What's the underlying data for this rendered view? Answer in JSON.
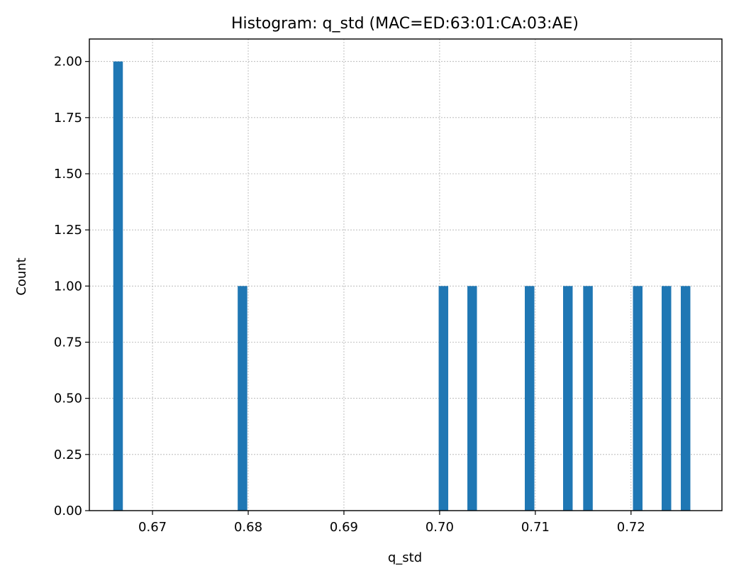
{
  "chart_data": {
    "type": "bar",
    "title": "Histogram: q_std (MAC=ED:63:01:CA:03:AE)",
    "xlabel": "q_std",
    "ylabel": "Count",
    "xlim": [
      0.6634,
      0.7295
    ],
    "ylim": [
      0,
      2.1
    ],
    "bin_width": 0.001,
    "grid": true,
    "color": "#1f77b4",
    "xticks": [
      "0.67",
      "0.68",
      "0.69",
      "0.70",
      "0.71",
      "0.72"
    ],
    "yticks": [
      "0.00",
      "0.25",
      "0.50",
      "0.75",
      "1.00",
      "1.25",
      "1.50",
      "1.75",
      "2.00"
    ],
    "bars": [
      {
        "x": 0.6664,
        "count": 2
      },
      {
        "x": 0.6794,
        "count": 1
      },
      {
        "x": 0.7004,
        "count": 1
      },
      {
        "x": 0.7034,
        "count": 1
      },
      {
        "x": 0.7094,
        "count": 1
      },
      {
        "x": 0.7134,
        "count": 1
      },
      {
        "x": 0.7155,
        "count": 1
      },
      {
        "x": 0.7207,
        "count": 1
      },
      {
        "x": 0.7237,
        "count": 1
      },
      {
        "x": 0.7257,
        "count": 1
      }
    ]
  }
}
